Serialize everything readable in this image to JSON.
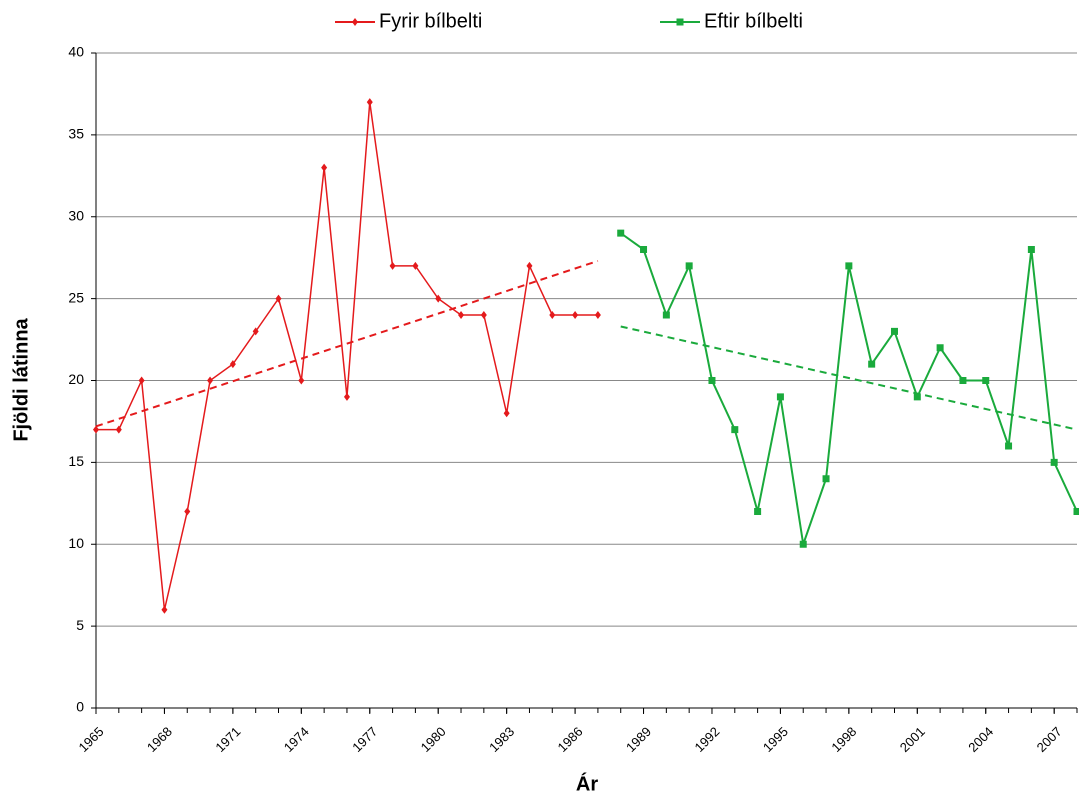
{
  "chart_data": {
    "type": "line",
    "xlabel": "Ár",
    "ylabel": "Fjöldi látinna",
    "xlim": [
      1965,
      2008
    ],
    "xticks": [
      1965,
      1968,
      1971,
      1974,
      1977,
      1980,
      1983,
      1986,
      1989,
      1992,
      1995,
      1998,
      2001,
      2004,
      2007
    ],
    "ylim": [
      0,
      40
    ],
    "yticks": [
      0,
      5,
      10,
      15,
      20,
      25,
      30,
      35,
      40
    ],
    "grid": true,
    "legend": "top",
    "series": [
      {
        "name": "Fyrir bílbelti",
        "color": "#e41a1c",
        "marker": "diamond",
        "x": [
          1965,
          1966,
          1967,
          1968,
          1969,
          1970,
          1971,
          1972,
          1973,
          1974,
          1975,
          1976,
          1977,
          1978,
          1979,
          1980,
          1981,
          1982,
          1983,
          1984,
          1985,
          1986,
          1987
        ],
        "values": [
          17,
          17,
          20,
          6,
          12,
          20,
          21,
          23,
          25,
          20,
          33,
          19,
          37,
          27,
          27,
          25,
          24,
          24,
          18,
          27,
          24,
          24,
          24
        ],
        "trend": {
          "x": [
            1965,
            1987
          ],
          "values": [
            17.2,
            27.3
          ]
        }
      },
      {
        "name": "Eftir bílbelti",
        "color": "#1aaa3c",
        "marker": "square",
        "x": [
          1988,
          1989,
          1990,
          1991,
          1992,
          1993,
          1994,
          1995,
          1996,
          1997,
          1998,
          1999,
          2000,
          2001,
          2002,
          2003,
          2004,
          2005,
          2006,
          2007,
          2008
        ],
        "values": [
          29,
          28,
          24,
          27,
          20,
          17,
          12,
          19,
          10,
          14,
          27,
          21,
          23,
          19,
          22,
          20,
          20,
          16,
          28,
          15,
          12
        ],
        "trend": {
          "x": [
            1988,
            2008
          ],
          "values": [
            23.3,
            17.0
          ]
        }
      }
    ]
  }
}
